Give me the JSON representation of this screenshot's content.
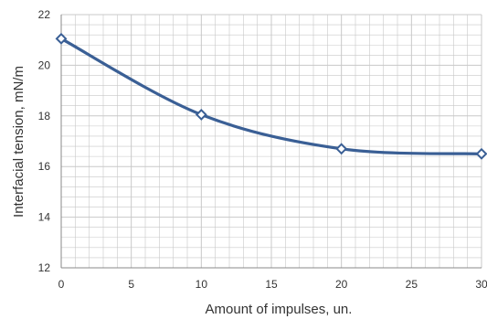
{
  "chart_data": {
    "type": "line",
    "xlabel": "Amount of impulses, un.",
    "ylabel": "Interfacial tension, mN/m",
    "xlim": [
      0,
      30
    ],
    "ylim": [
      12,
      22
    ],
    "x_ticks": [
      0,
      5,
      10,
      15,
      20,
      25,
      30
    ],
    "y_ticks": [
      12,
      14,
      16,
      18,
      20,
      22
    ],
    "x_minor_step": 1,
    "y_minor_step": 0.4,
    "grid": true,
    "smooth": true,
    "series": [
      {
        "x": [
          0,
          10,
          20,
          30
        ],
        "y": [
          21.05,
          18.05,
          16.7,
          16.5
        ]
      }
    ],
    "colors": {
      "line": "#3a5f95",
      "marker_fill": "#ffffff",
      "grid": "#c8c8c8",
      "axis": "#888888"
    }
  }
}
